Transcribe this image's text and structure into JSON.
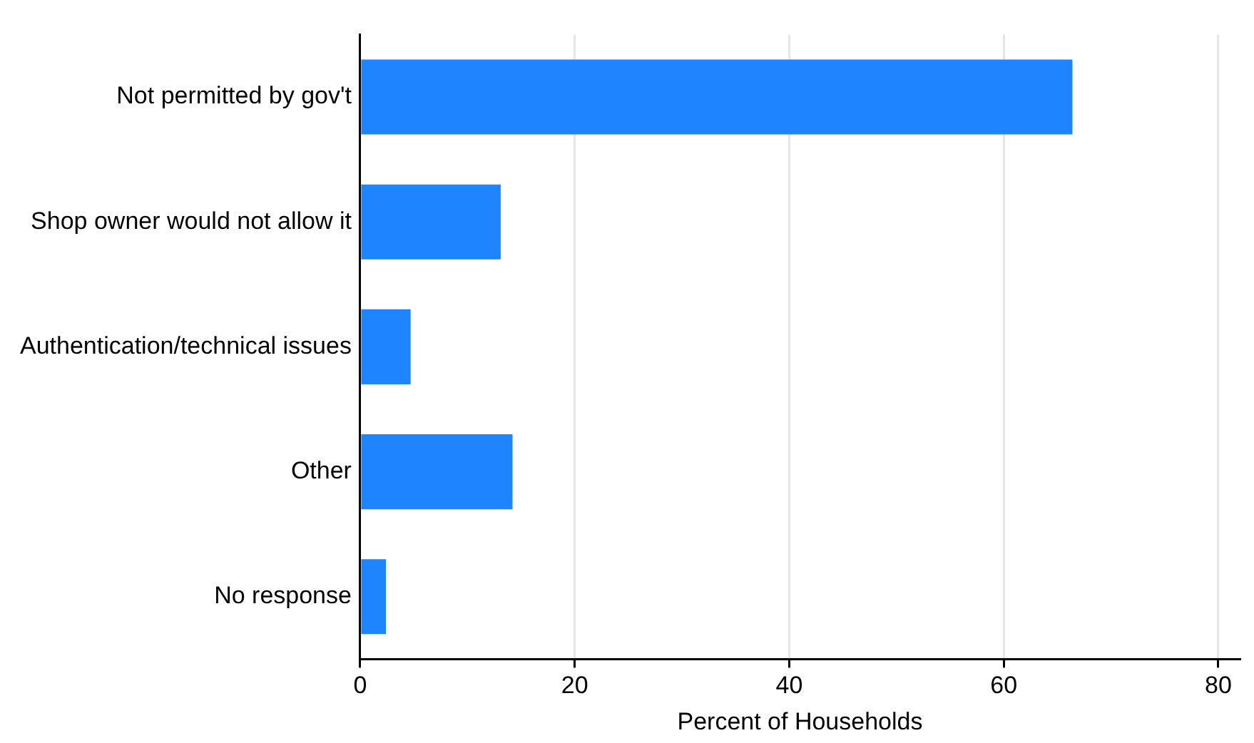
{
  "chart_data": {
    "type": "bar",
    "orientation": "horizontal",
    "xlabel": "Percent of Households",
    "categories": [
      "Not permitted by gov't",
      "Shop owner would not allow it",
      "Authentication/technical issues",
      "Other",
      "No response"
    ],
    "values": [
      66.4,
      13.1,
      4.7,
      14.2,
      2.4
    ],
    "color": "#1e84ff",
    "xlim": [
      0,
      82
    ],
    "xticks": [
      0,
      20,
      40,
      60,
      80
    ],
    "grid": "x",
    "legend": false
  }
}
